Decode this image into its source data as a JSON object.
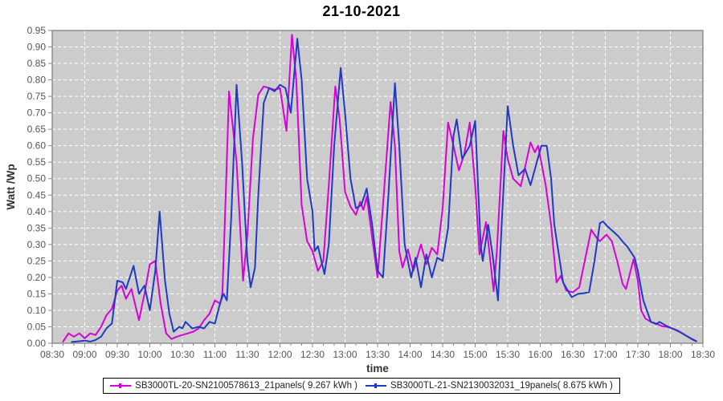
{
  "chart_data": {
    "type": "line",
    "title": "21-10-2021",
    "xlabel": "time",
    "ylabel": "Watt /Wp",
    "grid": true,
    "legend_position": "bottom",
    "plot_bg_color": "#cccccc",
    "grid_color": "#ffffff",
    "tick_label_color": "#555555",
    "axis_label_color": "#333333",
    "border_color": "#7a7a7a",
    "ylim": [
      0.0,
      0.95
    ],
    "x_range_minutes": [
      510,
      1110
    ],
    "x_ticks": [
      "08:30",
      "09:00",
      "09:30",
      "10:00",
      "10:30",
      "11:00",
      "11:30",
      "12:00",
      "12:30",
      "13:00",
      "13:30",
      "14:00",
      "14:30",
      "15:00",
      "15:30",
      "16:00",
      "16:30",
      "17:00",
      "17:30",
      "18:00",
      "18:30"
    ],
    "y_ticks": [
      "0.00",
      "0.05",
      "0.10",
      "0.15",
      "0.20",
      "0.25",
      "0.30",
      "0.35",
      "0.40",
      "0.45",
      "0.50",
      "0.55",
      "0.60",
      "0.65",
      "0.70",
      "0.75",
      "0.80",
      "0.85",
      "0.90",
      "0.95"
    ],
    "series": [
      {
        "name": "SB3000TL-20-SN2100578613_21panels( 9.267 kWh )",
        "color": "#d602d6",
        "points": [
          [
            520,
            0.005
          ],
          [
            525,
            0.03
          ],
          [
            530,
            0.02
          ],
          [
            535,
            0.03
          ],
          [
            540,
            0.015
          ],
          [
            545,
            0.03
          ],
          [
            550,
            0.025
          ],
          [
            555,
            0.05
          ],
          [
            560,
            0.085
          ],
          [
            565,
            0.105
          ],
          [
            570,
            0.16
          ],
          [
            574,
            0.175
          ],
          [
            578,
            0.135
          ],
          [
            583,
            0.165
          ],
          [
            590,
            0.07
          ],
          [
            595,
            0.15
          ],
          [
            600,
            0.24
          ],
          [
            605,
            0.25
          ],
          [
            610,
            0.12
          ],
          [
            615,
            0.03
          ],
          [
            620,
            0.013
          ],
          [
            625,
            0.02
          ],
          [
            630,
            0.025
          ],
          [
            635,
            0.03
          ],
          [
            640,
            0.035
          ],
          [
            645,
            0.045
          ],
          [
            650,
            0.07
          ],
          [
            655,
            0.09
          ],
          [
            660,
            0.13
          ],
          [
            665,
            0.12
          ],
          [
            667,
            0.155
          ],
          [
            670,
            0.45
          ],
          [
            673,
            0.765
          ],
          [
            680,
            0.55
          ],
          [
            686,
            0.19
          ],
          [
            690,
            0.33
          ],
          [
            695,
            0.62
          ],
          [
            700,
            0.755
          ],
          [
            705,
            0.78
          ],
          [
            710,
            0.775
          ],
          [
            715,
            0.77
          ],
          [
            720,
            0.775
          ],
          [
            726,
            0.645
          ],
          [
            731,
            0.937
          ],
          [
            735,
            0.8
          ],
          [
            740,
            0.42
          ],
          [
            745,
            0.31
          ],
          [
            750,
            0.28
          ],
          [
            755,
            0.22
          ],
          [
            760,
            0.25
          ],
          [
            765,
            0.48
          ],
          [
            771,
            0.78
          ],
          [
            775,
            0.68
          ],
          [
            780,
            0.46
          ],
          [
            785,
            0.415
          ],
          [
            790,
            0.39
          ],
          [
            794,
            0.43
          ],
          [
            797,
            0.405
          ],
          [
            800,
            0.445
          ],
          [
            805,
            0.32
          ],
          [
            810,
            0.2
          ],
          [
            815,
            0.42
          ],
          [
            822,
            0.733
          ],
          [
            826,
            0.6
          ],
          [
            830,
            0.28
          ],
          [
            833,
            0.23
          ],
          [
            838,
            0.285
          ],
          [
            843,
            0.22
          ],
          [
            850,
            0.3
          ],
          [
            855,
            0.24
          ],
          [
            860,
            0.29
          ],
          [
            865,
            0.27
          ],
          [
            870,
            0.41
          ],
          [
            875,
            0.67
          ],
          [
            880,
            0.6
          ],
          [
            885,
            0.525
          ],
          [
            890,
            0.575
          ],
          [
            895,
            0.67
          ],
          [
            900,
            0.48
          ],
          [
            904,
            0.27
          ],
          [
            910,
            0.368
          ],
          [
            914,
            0.25
          ],
          [
            917,
            0.158
          ],
          [
            920,
            0.28
          ],
          [
            926,
            0.645
          ],
          [
            930,
            0.56
          ],
          [
            935,
            0.5
          ],
          [
            942,
            0.477
          ],
          [
            947,
            0.55
          ],
          [
            951,
            0.61
          ],
          [
            955,
            0.58
          ],
          [
            958,
            0.6
          ],
          [
            965,
            0.48
          ],
          [
            970,
            0.36
          ],
          [
            975,
            0.185
          ],
          [
            979,
            0.205
          ],
          [
            984,
            0.16
          ],
          [
            990,
            0.155
          ],
          [
            996,
            0.17
          ],
          [
            1001,
            0.25
          ],
          [
            1007,
            0.345
          ],
          [
            1012,
            0.32
          ],
          [
            1015,
            0.31
          ],
          [
            1021,
            0.33
          ],
          [
            1026,
            0.31
          ],
          [
            1031,
            0.25
          ],
          [
            1036,
            0.18
          ],
          [
            1039,
            0.165
          ],
          [
            1046,
            0.255
          ],
          [
            1050,
            0.19
          ],
          [
            1053,
            0.1
          ],
          [
            1057,
            0.075
          ],
          [
            1062,
            0.065
          ],
          [
            1067,
            0.06
          ],
          [
            1072,
            0.052
          ],
          [
            1077,
            0.05
          ],
          [
            1082,
            0.045
          ],
          [
            1087,
            0.038
          ],
          [
            1092,
            0.028
          ],
          [
            1097,
            0.018
          ],
          [
            1101,
            0.01
          ],
          [
            1104,
            0.006
          ]
        ]
      },
      {
        "name": "SB3000TL-21-SN2130032031_19panels( 8.675 kWh )",
        "color": "#2239c4",
        "points": [
          [
            528,
            0.004
          ],
          [
            535,
            0.006
          ],
          [
            540,
            0.008
          ],
          [
            545,
            0.005
          ],
          [
            550,
            0.01
          ],
          [
            555,
            0.02
          ],
          [
            560,
            0.045
          ],
          [
            565,
            0.06
          ],
          [
            570,
            0.19
          ],
          [
            575,
            0.185
          ],
          [
            578,
            0.165
          ],
          [
            585,
            0.235
          ],
          [
            590,
            0.15
          ],
          [
            595,
            0.175
          ],
          [
            600,
            0.1
          ],
          [
            605,
            0.22
          ],
          [
            609,
            0.4
          ],
          [
            614,
            0.19
          ],
          [
            618,
            0.09
          ],
          [
            622,
            0.035
          ],
          [
            627,
            0.05
          ],
          [
            630,
            0.045
          ],
          [
            633,
            0.065
          ],
          [
            639,
            0.045
          ],
          [
            645,
            0.05
          ],
          [
            650,
            0.045
          ],
          [
            655,
            0.065
          ],
          [
            660,
            0.06
          ],
          [
            665,
            0.125
          ],
          [
            668,
            0.15
          ],
          [
            671,
            0.13
          ],
          [
            675,
            0.38
          ],
          [
            680,
            0.785
          ],
          [
            685,
            0.55
          ],
          [
            690,
            0.25
          ],
          [
            693,
            0.17
          ],
          [
            697,
            0.23
          ],
          [
            700,
            0.45
          ],
          [
            705,
            0.73
          ],
          [
            710,
            0.775
          ],
          [
            715,
            0.765
          ],
          [
            720,
            0.785
          ],
          [
            725,
            0.775
          ],
          [
            730,
            0.7
          ],
          [
            736,
            0.925
          ],
          [
            740,
            0.8
          ],
          [
            745,
            0.5
          ],
          [
            750,
            0.4
          ],
          [
            752,
            0.28
          ],
          [
            755,
            0.295
          ],
          [
            761,
            0.21
          ],
          [
            765,
            0.3
          ],
          [
            770,
            0.6
          ],
          [
            776,
            0.836
          ],
          [
            780,
            0.7
          ],
          [
            785,
            0.5
          ],
          [
            790,
            0.41
          ],
          [
            795,
            0.42
          ],
          [
            800,
            0.47
          ],
          [
            805,
            0.36
          ],
          [
            810,
            0.22
          ],
          [
            815,
            0.2
          ],
          [
            820,
            0.45
          ],
          [
            826,
            0.79
          ],
          [
            830,
            0.6
          ],
          [
            835,
            0.3
          ],
          [
            841,
            0.2
          ],
          [
            845,
            0.26
          ],
          [
            850,
            0.17
          ],
          [
            855,
            0.27
          ],
          [
            860,
            0.2
          ],
          [
            865,
            0.26
          ],
          [
            870,
            0.25
          ],
          [
            875,
            0.35
          ],
          [
            880,
            0.63
          ],
          [
            883,
            0.68
          ],
          [
            888,
            0.56
          ],
          [
            895,
            0.6
          ],
          [
            900,
            0.675
          ],
          [
            905,
            0.3
          ],
          [
            907,
            0.25
          ],
          [
            912,
            0.36
          ],
          [
            916,
            0.27
          ],
          [
            921,
            0.13
          ],
          [
            925,
            0.4
          ],
          [
            930,
            0.72
          ],
          [
            935,
            0.6
          ],
          [
            940,
            0.51
          ],
          [
            946,
            0.53
          ],
          [
            951,
            0.48
          ],
          [
            956,
            0.54
          ],
          [
            961,
            0.6
          ],
          [
            966,
            0.6
          ],
          [
            970,
            0.5
          ],
          [
            973,
            0.36
          ],
          [
            981,
            0.185
          ],
          [
            989,
            0.14
          ],
          [
            995,
            0.15
          ],
          [
            1000,
            0.152
          ],
          [
            1005,
            0.155
          ],
          [
            1010,
            0.25
          ],
          [
            1015,
            0.365
          ],
          [
            1018,
            0.37
          ],
          [
            1022,
            0.355
          ],
          [
            1027,
            0.34
          ],
          [
            1032,
            0.325
          ],
          [
            1037,
            0.305
          ],
          [
            1040,
            0.295
          ],
          [
            1047,
            0.26
          ],
          [
            1050,
            0.22
          ],
          [
            1055,
            0.13
          ],
          [
            1062,
            0.065
          ],
          [
            1067,
            0.058
          ],
          [
            1070,
            0.065
          ],
          [
            1075,
            0.055
          ],
          [
            1080,
            0.047
          ],
          [
            1085,
            0.04
          ],
          [
            1090,
            0.032
          ],
          [
            1095,
            0.022
          ],
          [
            1100,
            0.013
          ],
          [
            1104,
            0.006
          ]
        ]
      }
    ]
  }
}
